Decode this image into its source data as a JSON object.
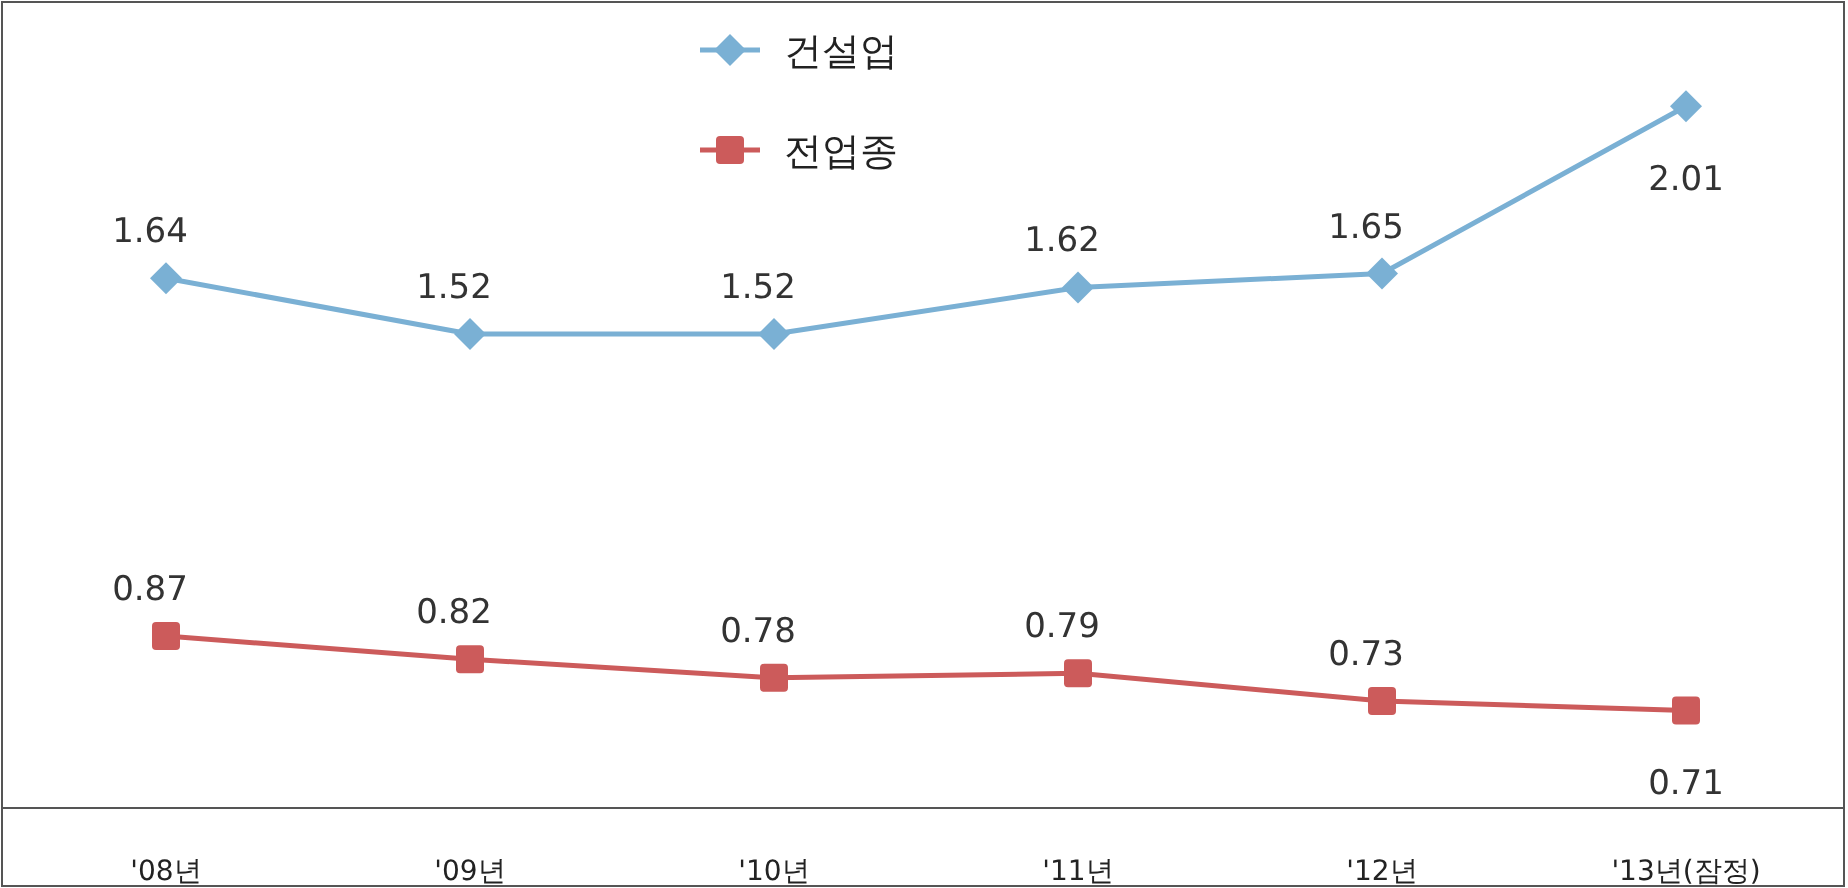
{
  "chart_data": {
    "type": "line",
    "categories": [
      "'08년",
      "'09년",
      "'10년",
      "'11년",
      "'12년",
      "'13년(잠정)"
    ],
    "series": [
      {
        "name": "건설업",
        "color": "#7ab0d4",
        "marker": "diamond",
        "values": [
          1.64,
          1.52,
          1.52,
          1.62,
          1.65,
          2.01
        ]
      },
      {
        "name": "전업종",
        "color": "#cc5b5b",
        "marker": "square",
        "values": [
          0.87,
          0.82,
          0.78,
          0.79,
          0.73,
          0.71
        ]
      }
    ],
    "ylim": [
      0.5,
      2.23
    ],
    "tick_labels": "x",
    "data_labels": true,
    "legend": "top",
    "line_style": "solid"
  }
}
